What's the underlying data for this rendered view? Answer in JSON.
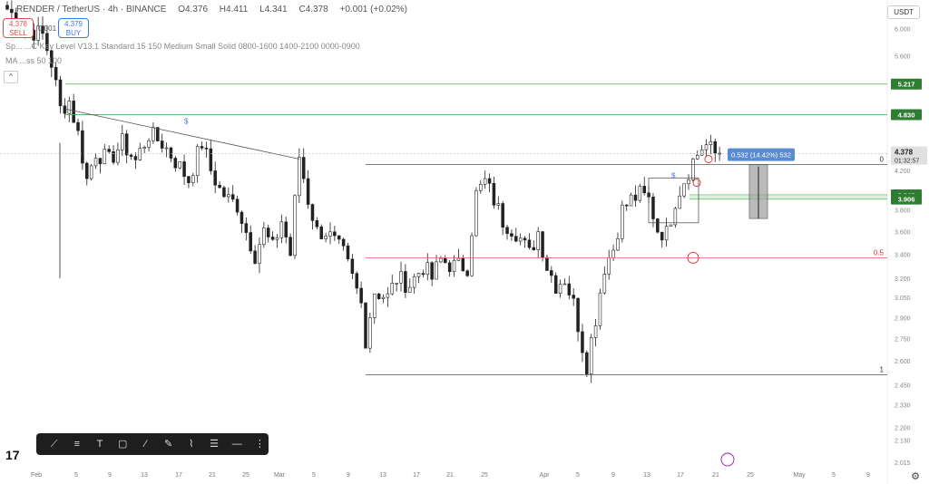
{
  "header": {
    "symbol": "RENDER / TetherUS · 4h · BINANCE",
    "open": "O4.376",
    "high": "H4.411",
    "low": "L4.341",
    "close": "C4.378",
    "change": "+0.001 (+0.02%)",
    "indicator1": "Sp... ...C Key Level V13.1 Standard 15 150 Medium Small Solid 0800-1600 1400-2100 0000-0900",
    "indicator2": "MA ...ss 50 100"
  },
  "trade": {
    "sell_price": "4.378",
    "sell_label": "SELL",
    "buy_price": "4.379",
    "buy_label": "BUY",
    "spread": "0.001"
  },
  "currency_selector": "USDT",
  "colors": {
    "up": "#222222",
    "down": "#222222",
    "green_line": "#4caf50",
    "green_label": "#2e7d32",
    "red_line": "#e57373",
    "measure": "#5b8bd0",
    "current_price_bg": "#e0e0e0"
  },
  "chart_data": {
    "type": "candlestick",
    "title": "",
    "price_axis": {
      "ticks": [
        "6.000",
        "5.600",
        "5.217",
        "4.830",
        "4.378",
        "4.200",
        "3.948",
        "3.906",
        "3.800",
        "3.600",
        "3.400",
        "3.200",
        "3.050",
        "2.900",
        "2.750",
        "2.600",
        "2.450",
        "2.330",
        "2.200",
        "2.130",
        "2.015"
      ],
      "scale": "log",
      "range": [
        2.015,
        6.3
      ]
    },
    "time_axis": {
      "ticks": [
        "Feb",
        "5",
        "9",
        "13",
        "17",
        "21",
        "25",
        "Mar",
        "5",
        "9",
        "13",
        "17",
        "21",
        "25",
        "Apr",
        "5",
        "9",
        "13",
        "17",
        "21",
        "25",
        "May",
        "5",
        "9"
      ]
    },
    "price_path": [
      [
        0,
        6.3
      ],
      [
        4,
        6.0
      ],
      [
        8,
        5.9
      ],
      [
        10,
        5.5
      ],
      [
        12,
        4.9
      ],
      [
        14,
        5.0
      ],
      [
        16,
        4.6
      ],
      [
        18,
        4.1
      ],
      [
        20,
        4.4
      ],
      [
        23,
        4.3
      ],
      [
        26,
        4.5
      ],
      [
        29,
        4.3
      ],
      [
        32,
        4.6
      ],
      [
        35,
        4.5
      ],
      [
        38,
        4.3
      ],
      [
        41,
        4.1
      ],
      [
        44,
        4.5
      ],
      [
        46,
        4.2
      ],
      [
        48,
        4.0
      ],
      [
        50,
        3.9
      ],
      [
        52,
        3.85
      ],
      [
        54,
        3.6
      ],
      [
        56,
        3.4
      ],
      [
        58,
        3.6
      ],
      [
        60,
        3.45
      ],
      [
        62,
        3.7
      ],
      [
        64,
        3.4
      ],
      [
        66,
        4.35
      ],
      [
        68,
        3.9
      ],
      [
        70,
        3.6
      ],
      [
        72,
        3.6
      ],
      [
        74,
        3.5
      ],
      [
        76,
        3.4
      ],
      [
        78,
        3.2
      ],
      [
        80,
        3.0
      ],
      [
        81,
        2.75
      ],
      [
        83,
        3.1
      ],
      [
        86,
        3.05
      ],
      [
        88,
        3.2
      ],
      [
        91,
        3.15
      ],
      [
        94,
        3.3
      ],
      [
        96,
        3.2
      ],
      [
        98,
        3.35
      ],
      [
        101,
        3.3
      ],
      [
        104,
        3.3
      ],
      [
        106,
        3.95
      ],
      [
        108,
        4.08
      ],
      [
        110,
        3.9
      ],
      [
        112,
        3.7
      ],
      [
        115,
        3.6
      ],
      [
        118,
        3.4
      ],
      [
        120,
        3.6
      ],
      [
        122,
        3.3
      ],
      [
        124,
        3.15
      ],
      [
        126,
        3.2
      ],
      [
        128,
        3.0
      ],
      [
        130,
        2.7
      ],
      [
        131,
        2.58
      ],
      [
        133,
        2.9
      ],
      [
        135,
        3.3
      ],
      [
        137,
        3.45
      ],
      [
        139,
        3.8
      ],
      [
        141,
        3.9
      ],
      [
        143,
        3.95
      ],
      [
        145,
        3.9
      ],
      [
        147,
        3.62
      ],
      [
        149,
        3.58
      ],
      [
        151,
        3.9
      ],
      [
        153,
        4.1
      ],
      [
        155,
        4.3
      ],
      [
        157,
        4.45
      ],
      [
        158,
        4.47
      ],
      [
        160,
        4.378
      ]
    ],
    "candles_count": 162,
    "current_price": "4.378",
    "countdown": "01:32:57",
    "horizontal_levels": [
      {
        "price": 5.217,
        "label": "5.217",
        "color": "green"
      },
      {
        "price": 4.83,
        "label": "4.830",
        "color": "green"
      },
      {
        "price": 3.948,
        "label": "3.948",
        "color": "green"
      },
      {
        "price": 3.906,
        "label": "3.906",
        "color": "green"
      }
    ],
    "fib": [
      {
        "level": "0",
        "price": 4.26
      },
      {
        "level": "0.5",
        "price": 3.37,
        "color": "red"
      },
      {
        "level": "1",
        "price": 2.51
      }
    ],
    "annotations": [
      {
        "text": "0.532 (14.42%) 532",
        "kind": "measure"
      },
      {
        "text": "$",
        "kind": "marker"
      },
      {
        "text": "$",
        "kind": "marker"
      }
    ]
  },
  "toolbar_icons": [
    "trendline-icon",
    "fib-icon",
    "text-icon",
    "rectangle-icon",
    "brush-icon",
    "pencil-icon",
    "pattern-icon",
    "list-icon",
    "ray-icon",
    "measure-icon"
  ],
  "branding": {
    "logo": "17"
  }
}
